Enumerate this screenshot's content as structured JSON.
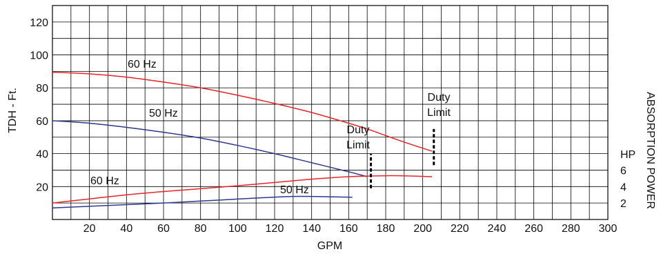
{
  "chart_data": {
    "type": "line",
    "title": "",
    "xlabel": "GPM",
    "ylabel": "TDH - Ft.",
    "y2label": "ABSORPTION POWER",
    "y2unit": "HP",
    "xlim": [
      0,
      300
    ],
    "ylim": [
      0,
      130
    ],
    "x_ticks": [
      20,
      40,
      60,
      80,
      100,
      120,
      140,
      160,
      180,
      200,
      220,
      240,
      260,
      280,
      300
    ],
    "y_ticks": [
      20,
      40,
      60,
      80,
      100,
      120
    ],
    "y2_ticks": [
      {
        "label": "2",
        "at_tdh": 10
      },
      {
        "label": "4",
        "at_tdh": 20
      },
      {
        "label": "6",
        "at_tdh": 30
      }
    ],
    "grid": true,
    "series": [
      {
        "name": "60 Hz",
        "kind": "head",
        "color": "#e8232a",
        "x": [
          0,
          20,
          40,
          60,
          80,
          100,
          120,
          140,
          160,
          170,
          180,
          190,
          205
        ],
        "y": [
          89.5,
          88.5,
          86.5,
          83.5,
          80,
          75.5,
          70.5,
          65,
          58.5,
          55,
          51,
          47,
          41.5
        ]
      },
      {
        "name": "50 Hz",
        "kind": "head",
        "color": "#2b3990",
        "x": [
          0,
          20,
          40,
          60,
          80,
          100,
          120,
          140,
          160,
          170
        ],
        "y": [
          60,
          58.5,
          56,
          53,
          49.5,
          45,
          40,
          34.5,
          29,
          26
        ]
      },
      {
        "name": "60 Hz",
        "kind": "power",
        "color": "#e8232a",
        "x": [
          0,
          20,
          40,
          60,
          80,
          100,
          120,
          140,
          160,
          180,
          190,
          205
        ],
        "y": [
          10,
          12.5,
          15,
          17,
          18.7,
          20.5,
          22.5,
          24.5,
          26,
          26.6,
          26.5,
          26
        ]
      },
      {
        "name": "50 Hz",
        "kind": "power",
        "color": "#2b3990",
        "x": [
          0,
          20,
          40,
          60,
          80,
          100,
          120,
          130,
          140,
          150,
          162
        ],
        "y": [
          7,
          8,
          9,
          10,
          11.2,
          12.4,
          13.6,
          14,
          14,
          13.8,
          13.5
        ]
      }
    ],
    "curve_labels": [
      "60 Hz",
      "50 Hz",
      "60 Hz",
      "50 Hz"
    ],
    "duty_limits": [
      {
        "line1": "Duty",
        "line2": "Limit",
        "x": 172,
        "y_from": 19,
        "y_to": 40
      },
      {
        "line1": "Duty",
        "line2": "Limit",
        "x": 206,
        "y_from": 33,
        "y_to": 55
      }
    ]
  }
}
